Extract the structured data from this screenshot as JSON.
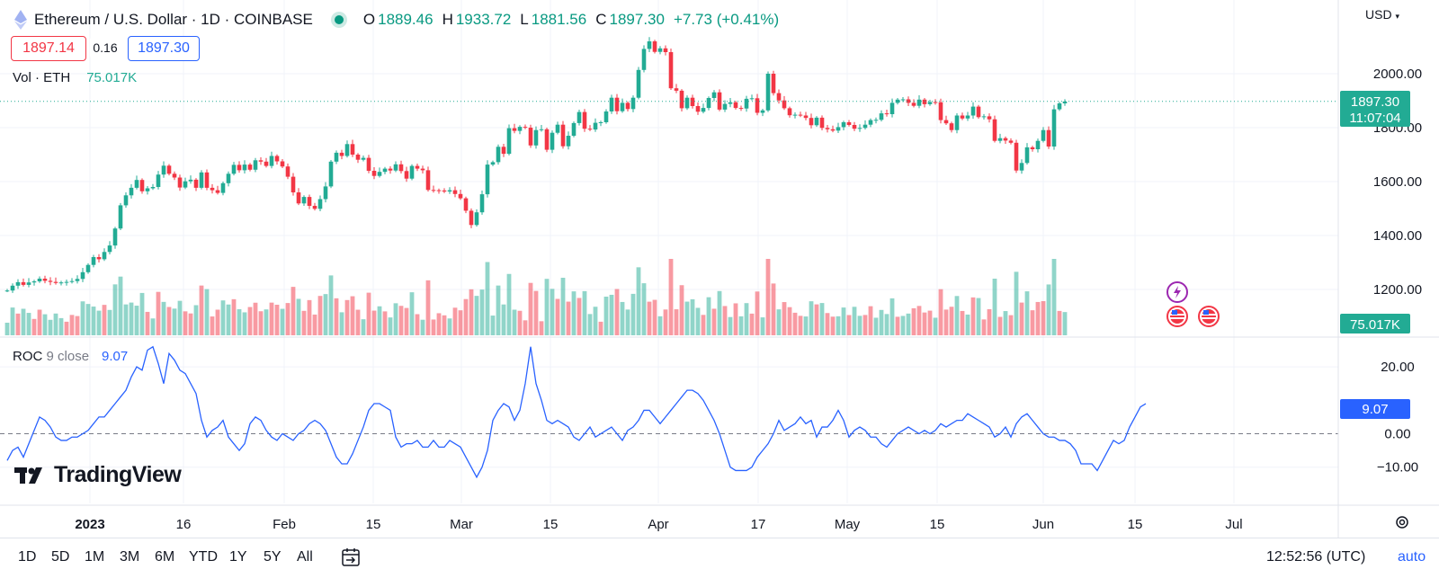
{
  "header": {
    "symbol": "Ethereum / U.S. Dollar · 1D · COINBASE",
    "o_label": "O",
    "o": "1889.46",
    "h_label": "H",
    "h": "1933.72",
    "l_label": "L",
    "l": "1881.56",
    "c_label": "C",
    "c": "1897.30",
    "change": "+7.73 (+0.41%)"
  },
  "bid": "1897.14",
  "spread": "0.16",
  "ask": "1897.30",
  "volume_label": "Vol · ETH",
  "volume_value": "75.017K",
  "roc_label": "ROC",
  "roc_params": "9 close",
  "roc_value": "9.07",
  "currency": "USD",
  "price_badge": "1897.30",
  "countdown": "11:07:04",
  "volume_badge": "75.017K",
  "roc_badge": "9.07",
  "logo_text": "TradingView",
  "timeframes": [
    "1D",
    "5D",
    "1M",
    "3M",
    "6M",
    "YTD",
    "1Y",
    "5Y",
    "All"
  ],
  "clock": "12:52:56 (UTC)",
  "scale_mode": "auto",
  "colors": {
    "up": "#22ab94",
    "down": "#f23645",
    "roc": "#2962ff",
    "accent": "#2962ff"
  },
  "chart_data": [
    {
      "type": "candlestick",
      "title": "Ethereum / U.S. Dollar · 1D · COINBASE",
      "x_ticks": [
        "2023",
        "16",
        "Feb",
        "15",
        "Mar",
        "15",
        "Apr",
        "17",
        "May",
        "15",
        "Jun",
        "15",
        "Jul"
      ],
      "y_ticks": [
        "2000.00",
        "1800.00",
        "1600.00",
        "1400.00",
        "1200.00"
      ],
      "ylim": [
        1150,
        2150
      ],
      "close": [
        1196,
        1214,
        1227,
        1217,
        1226,
        1230,
        1240,
        1232,
        1228,
        1224,
        1226,
        1228,
        1231,
        1239,
        1264,
        1291,
        1320,
        1312,
        1339,
        1363,
        1426,
        1512,
        1549,
        1577,
        1606,
        1564,
        1575,
        1580,
        1626,
        1659,
        1629,
        1615,
        1578,
        1601,
        1607,
        1577,
        1634,
        1577,
        1568,
        1558,
        1594,
        1629,
        1662,
        1642,
        1663,
        1644,
        1679,
        1674,
        1658,
        1695,
        1675,
        1656,
        1618,
        1560,
        1519,
        1543,
        1510,
        1499,
        1535,
        1582,
        1674,
        1707,
        1695,
        1739,
        1700,
        1681,
        1688,
        1640,
        1621,
        1636,
        1648,
        1641,
        1664,
        1639,
        1611,
        1658,
        1648,
        1642,
        1569,
        1568,
        1567,
        1563,
        1568,
        1554,
        1538,
        1492,
        1439,
        1486,
        1553,
        1663,
        1672,
        1729,
        1703,
        1798,
        1788,
        1803,
        1800,
        1734,
        1791,
        1794,
        1718,
        1781,
        1811,
        1731,
        1770,
        1817,
        1858,
        1796,
        1793,
        1818,
        1820,
        1860,
        1911,
        1861,
        1892,
        1869,
        1911,
        2014,
        2092,
        2120,
        2081,
        2094,
        2080,
        1946,
        1937,
        1872,
        1911,
        1880,
        1859,
        1873,
        1910,
        1931,
        1867,
        1888,
        1894,
        1873,
        1871,
        1907,
        1909,
        1855,
        1864,
        2000,
        1928,
        1901,
        1872,
        1846,
        1848,
        1845,
        1836,
        1809,
        1837,
        1799,
        1794,
        1789,
        1802,
        1820,
        1810,
        1796,
        1799,
        1811,
        1828,
        1829,
        1853,
        1850,
        1892,
        1904,
        1905,
        1892,
        1881,
        1904,
        1887,
        1895,
        1894,
        1828,
        1816,
        1791,
        1845,
        1834,
        1845,
        1878,
        1839,
        1842,
        1831,
        1751,
        1761,
        1752,
        1744,
        1641,
        1669,
        1727,
        1720,
        1751,
        1791,
        1730,
        1868,
        1890,
        1897
      ],
      "volume_color": [
        "green",
        "green",
        "red",
        "green",
        "green",
        "red",
        "red",
        "green",
        "green",
        "green",
        "green",
        "red",
        "red",
        "red",
        "green",
        "green",
        "green",
        "green",
        "red",
        "green",
        "green",
        "green",
        "green",
        "green",
        "green",
        "green",
        "red",
        "green",
        "red",
        "green",
        "red",
        "green",
        "green",
        "red",
        "red",
        "green",
        "red",
        "green",
        "red",
        "red",
        "green",
        "green",
        "red",
        "green",
        "green",
        "red",
        "red",
        "red",
        "green",
        "red",
        "red",
        "green",
        "red",
        "red",
        "green",
        "red",
        "red",
        "red",
        "red",
        "green",
        "green",
        "red",
        "green",
        "red",
        "red",
        "red",
        "green",
        "red",
        "red",
        "green",
        "red",
        "green",
        "green",
        "red",
        "red",
        "green",
        "red",
        "green",
        "red",
        "red",
        "red",
        "red",
        "green",
        "red",
        "red",
        "red",
        "red",
        "green",
        "green",
        "green",
        "green",
        "green",
        "green",
        "green",
        "green",
        "red",
        "red",
        "red",
        "red",
        "red",
        "green",
        "green",
        "red",
        "green",
        "red",
        "green",
        "red",
        "green",
        "green",
        "green",
        "red",
        "green",
        "green",
        "red",
        "green",
        "green",
        "green",
        "green",
        "green",
        "red",
        "red",
        "green",
        "red",
        "red",
        "red",
        "red",
        "green",
        "green",
        "green",
        "red",
        "green",
        "red",
        "green",
        "red",
        "green",
        "red",
        "green",
        "green",
        "red",
        "red",
        "green",
        "red",
        "red",
        "green",
        "red",
        "red",
        "red",
        "red",
        "green",
        "green",
        "red",
        "green",
        "red",
        "red",
        "green",
        "green",
        "red",
        "green",
        "green",
        "red",
        "red",
        "green",
        "green",
        "green",
        "green",
        "red",
        "green",
        "green",
        "red",
        "red",
        "red",
        "red",
        "green",
        "red",
        "red",
        "red",
        "green",
        "red",
        "green",
        "red",
        "green",
        "red",
        "red",
        "green",
        "red",
        "green",
        "red",
        "green",
        "red",
        "green",
        "red",
        "red",
        "red",
        "green",
        "green",
        "red",
        "green"
      ]
    },
    {
      "type": "line",
      "title": "ROC 9 close",
      "y_ticks": [
        "20.00",
        "0.00",
        "−10.00"
      ],
      "ylim": [
        -17.5,
        27.5
      ],
      "y": [
        -8,
        -5,
        -4,
        -7,
        -3,
        1,
        5,
        4,
        2,
        -1,
        -2,
        -2,
        -1,
        -1,
        0,
        1,
        3,
        5,
        5,
        7,
        9,
        11,
        13,
        17,
        20,
        19,
        25,
        26,
        21,
        15,
        24,
        22,
        19,
        18,
        15,
        12,
        4,
        -1,
        1,
        2,
        4,
        -1,
        -3,
        -5,
        -3,
        3,
        5,
        4,
        1,
        -1,
        -2,
        0,
        -1,
        -2,
        0,
        1,
        3,
        4,
        3,
        1,
        -3,
        -7,
        -9,
        -9,
        -6,
        -2,
        2,
        7,
        9,
        9,
        8,
        7,
        -1,
        -4,
        -3,
        -3,
        -2,
        -4,
        -4,
        -2,
        -4,
        -4,
        -2,
        -3,
        -4,
        -7,
        -10,
        -13,
        -10,
        -5,
        4,
        7,
        9,
        8,
        4,
        7,
        15,
        26,
        15,
        10,
        4,
        3,
        4,
        3,
        2,
        -1,
        -2,
        0,
        2,
        -1,
        0,
        1,
        2,
        0,
        -2,
        1,
        2,
        4,
        7,
        7,
        5,
        3,
        5,
        7,
        9,
        11,
        13,
        13,
        12,
        10,
        7,
        4,
        0,
        -5,
        -10,
        -11,
        -11,
        -11,
        -10,
        -7,
        -5,
        -3,
        0,
        4,
        1,
        2,
        3,
        5,
        3,
        4,
        -1,
        2,
        2,
        4,
        7,
        4,
        -1,
        1,
        2,
        1,
        -1,
        -1,
        -3,
        -4,
        -2,
        0,
        1,
        2,
        1,
        0,
        1,
        0,
        1,
        3,
        2,
        3,
        4,
        4,
        6,
        5,
        4,
        3,
        2,
        -1,
        0,
        2,
        -1,
        3,
        5,
        6,
        4,
        2,
        0,
        -1,
        -1,
        -2,
        -2,
        -3,
        -5,
        -9,
        -9,
        -9,
        -11,
        -8,
        -5,
        -2,
        -3,
        -2,
        2,
        5,
        8,
        9
      ]
    }
  ]
}
